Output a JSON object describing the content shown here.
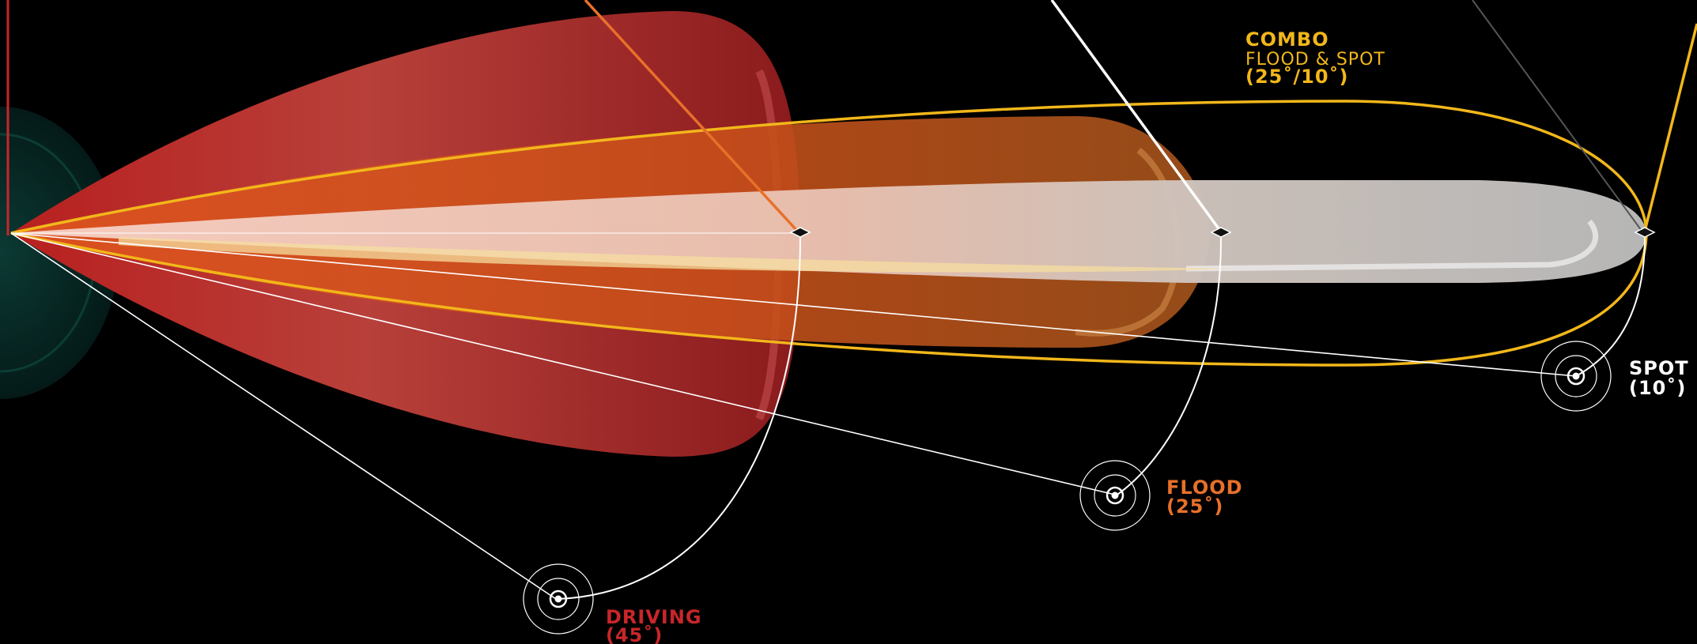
{
  "colors": {
    "background": "#000000",
    "driving": "#c8262a",
    "flood": "#e8702a",
    "combo": "#f2b71a",
    "spot": "#ffffff"
  },
  "labels": {
    "combo": {
      "title": "COMBO",
      "subtitle": "FLOOD & SPOT",
      "angle": "(25˚/10˚)"
    },
    "spot": {
      "title": "SPOT",
      "angle": "(10˚)"
    },
    "flood": {
      "title": "FLOOD",
      "angle": "(25˚)"
    },
    "driving": {
      "title": "DRIVING",
      "angle": "(45˚)"
    }
  },
  "icons": [
    "target-icon-spot",
    "target-icon-flood",
    "target-icon-driving",
    "headlight-icon"
  ]
}
